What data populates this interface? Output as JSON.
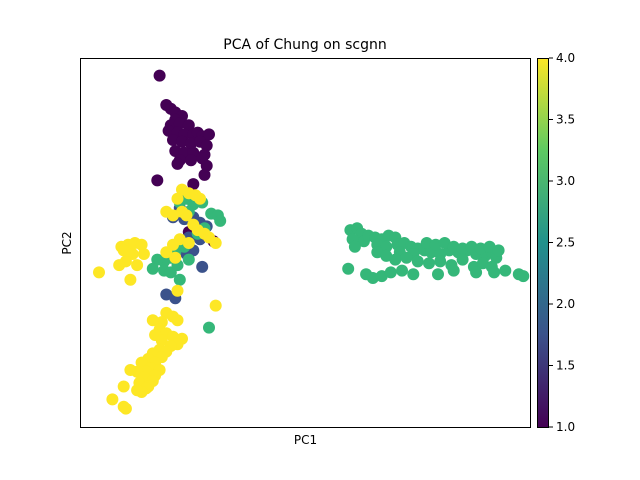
{
  "chart_data": {
    "type": "scatter",
    "title": "PCA of Chung on scgnn",
    "xlabel": "PC1",
    "ylabel": "PC2",
    "x_ticks_shown": false,
    "y_ticks_shown": false,
    "xlim": [
      0,
      100
    ],
    "ylim": [
      0,
      100
    ],
    "grid": false,
    "colorbar": {
      "colormap": "viridis",
      "range": [
        1.0,
        4.0
      ],
      "ticks": [
        "1.0",
        "1.5",
        "2.0",
        "2.5",
        "3.0",
        "3.5",
        "4.0"
      ],
      "colors": [
        "#440154",
        "#3b528b",
        "#21918c",
        "#5ec962",
        "#fde725"
      ]
    },
    "series": [
      {
        "value": 1.0,
        "color": "#440154",
        "points": [
          [
            17.5,
            95.5
          ],
          [
            19,
            87.5
          ],
          [
            20,
            86.5
          ],
          [
            21,
            85.5
          ],
          [
            22.5,
            84.5
          ],
          [
            21,
            83.5
          ],
          [
            20,
            82
          ],
          [
            22,
            82.5
          ],
          [
            24,
            82
          ],
          [
            19.5,
            80.5
          ],
          [
            21.5,
            80
          ],
          [
            23,
            79.5
          ],
          [
            25,
            79.5
          ],
          [
            26,
            80
          ],
          [
            27,
            79
          ],
          [
            28.5,
            79.5
          ],
          [
            20.5,
            78
          ],
          [
            22.5,
            77.5
          ],
          [
            24.5,
            77
          ],
          [
            26.5,
            77.5
          ],
          [
            28,
            76.5
          ],
          [
            21,
            75
          ],
          [
            23,
            74.5
          ],
          [
            25,
            74.5
          ],
          [
            27.5,
            74
          ],
          [
            22,
            72.5
          ],
          [
            24.5,
            72.5
          ],
          [
            27,
            73
          ],
          [
            28,
            71
          ],
          [
            21.5,
            71.5
          ],
          [
            27.5,
            68.5
          ],
          [
            17,
            67
          ],
          [
            25,
            66
          ],
          [
            24,
            53
          ],
          [
            25.5,
            54
          ],
          [
            27,
            53
          ],
          [
            29.5,
            50.5
          ]
        ]
      },
      {
        "value": 2.0,
        "color": "#3b528b",
        "points": [
          [
            22,
            59.5
          ],
          [
            20.5,
            57
          ],
          [
            23,
            56.5
          ],
          [
            25,
            57
          ],
          [
            26.5,
            55.5
          ],
          [
            28,
            54.5
          ],
          [
            24,
            51.5
          ],
          [
            26.5,
            51
          ],
          [
            22.5,
            50
          ],
          [
            25,
            48
          ],
          [
            23.5,
            47
          ],
          [
            27,
            43.5
          ],
          [
            19,
            36
          ],
          [
            21,
            35
          ]
        ]
      },
      {
        "value": 3.0,
        "color": "#35b779",
        "points": [
          [
            22,
            61
          ],
          [
            23.5,
            62
          ],
          [
            25,
            60.5
          ],
          [
            24,
            58.5
          ],
          [
            27,
            61
          ],
          [
            29,
            58
          ],
          [
            30.5,
            57.5
          ],
          [
            31,
            56
          ],
          [
            27.5,
            54
          ],
          [
            26,
            52.5
          ],
          [
            22,
            50.5
          ],
          [
            23,
            49
          ],
          [
            21,
            47.5
          ],
          [
            20,
            46
          ],
          [
            18.5,
            45
          ],
          [
            17,
            45.5
          ],
          [
            16,
            43
          ],
          [
            18.5,
            42.5
          ],
          [
            20,
            42
          ],
          [
            21.5,
            44
          ],
          [
            24,
            45.5
          ],
          [
            22,
            40
          ],
          [
            28.5,
            27
          ],
          [
            60,
            53.5
          ],
          [
            61.5,
            54
          ],
          [
            62.5,
            52.5
          ],
          [
            60.5,
            51
          ],
          [
            63,
            50.5
          ],
          [
            61,
            49
          ],
          [
            64,
            52
          ],
          [
            65.5,
            51.5
          ],
          [
            67,
            51
          ],
          [
            68.5,
            52
          ],
          [
            70,
            51.5
          ],
          [
            66,
            49.5
          ],
          [
            68,
            49
          ],
          [
            70.5,
            49.5
          ],
          [
            72,
            50
          ],
          [
            73.5,
            49
          ],
          [
            75,
            48.5
          ],
          [
            71,
            47.5
          ],
          [
            74,
            47
          ],
          [
            76.5,
            48
          ],
          [
            78,
            47.5
          ],
          [
            80,
            47
          ],
          [
            82,
            48
          ],
          [
            84,
            47.5
          ],
          [
            86,
            48
          ],
          [
            88,
            47
          ],
          [
            90,
            46.5
          ],
          [
            91.5,
            47.5
          ],
          [
            92.5,
            46
          ],
          [
            77,
            50
          ],
          [
            79,
            49.5
          ],
          [
            81,
            50
          ],
          [
            83,
            49
          ],
          [
            85,
            48.5
          ],
          [
            87,
            49
          ],
          [
            89,
            48.5
          ],
          [
            91,
            49
          ],
          [
            93,
            48
          ],
          [
            66,
            47.5
          ],
          [
            68,
            46.5
          ],
          [
            70,
            45.5
          ],
          [
            72.5,
            46
          ],
          [
            75,
            45
          ],
          [
            77.5,
            44.5
          ],
          [
            80,
            45
          ],
          [
            82.5,
            44
          ],
          [
            85,
            45.5
          ],
          [
            87.5,
            43.5
          ],
          [
            89.5,
            44.5
          ],
          [
            91.5,
            43.5
          ],
          [
            92,
            42
          ],
          [
            59.5,
            43
          ],
          [
            63.5,
            41.5
          ],
          [
            65,
            40.5
          ],
          [
            67,
            41
          ],
          [
            69,
            42
          ],
          [
            71.5,
            42.5
          ],
          [
            74,
            41.5
          ],
          [
            79.5,
            41.5
          ],
          [
            83,
            42.5
          ],
          [
            88,
            42
          ],
          [
            94.5,
            42.5
          ],
          [
            97.5,
            41.5
          ],
          [
            98.5,
            41
          ]
        ]
      },
      {
        "value": 4.0,
        "color": "#fde725",
        "points": [
          [
            22.5,
            64.5
          ],
          [
            24,
            63.5
          ],
          [
            25.5,
            63
          ],
          [
            26.5,
            62
          ],
          [
            21.5,
            62
          ],
          [
            19,
            58.5
          ],
          [
            20.5,
            57.5
          ],
          [
            22.5,
            58.5
          ],
          [
            23.5,
            57.5
          ],
          [
            25,
            55
          ],
          [
            26,
            53.5
          ],
          [
            27.5,
            52.5
          ],
          [
            28.5,
            51.5
          ],
          [
            30,
            50
          ],
          [
            22,
            51
          ],
          [
            20.5,
            49.5
          ],
          [
            24,
            50
          ],
          [
            19,
            47.5
          ],
          [
            21,
            46
          ],
          [
            9,
            49
          ],
          [
            10.5,
            49.5
          ],
          [
            12,
            50
          ],
          [
            13.5,
            49.5
          ],
          [
            9.5,
            48
          ],
          [
            11.5,
            47
          ],
          [
            14,
            47
          ],
          [
            10,
            45
          ],
          [
            12.5,
            44
          ],
          [
            8.5,
            44
          ],
          [
            4,
            42
          ],
          [
            11,
            40
          ],
          [
            21.5,
            37
          ],
          [
            30,
            33
          ],
          [
            19,
            31
          ],
          [
            20.5,
            30
          ],
          [
            21.5,
            29
          ],
          [
            18,
            28.5
          ],
          [
            16,
            29
          ],
          [
            17.5,
            26.5
          ],
          [
            19,
            25.5
          ],
          [
            20.5,
            24.5
          ],
          [
            22.5,
            24
          ],
          [
            21.5,
            22.5
          ],
          [
            16.5,
            25
          ],
          [
            18,
            23.5
          ],
          [
            20,
            22
          ],
          [
            17.5,
            21
          ],
          [
            19,
            20.5
          ],
          [
            16,
            20
          ],
          [
            18,
            19
          ],
          [
            15,
            18.5
          ],
          [
            16.5,
            17.5
          ],
          [
            13.5,
            17.5
          ],
          [
            15.5,
            16
          ],
          [
            17.5,
            15.5
          ],
          [
            14.5,
            15
          ],
          [
            16.5,
            14
          ],
          [
            12.5,
            15
          ],
          [
            14,
            13.5
          ],
          [
            16,
            12.5
          ],
          [
            13,
            12
          ],
          [
            15,
            11
          ],
          [
            14.5,
            10.5
          ],
          [
            13.5,
            9.5
          ],
          [
            11,
            15.5
          ],
          [
            9.5,
            11
          ],
          [
            12.5,
            10
          ],
          [
            7,
            7.5
          ],
          [
            9.5,
            5.5
          ],
          [
            10,
            5
          ]
        ]
      }
    ]
  }
}
